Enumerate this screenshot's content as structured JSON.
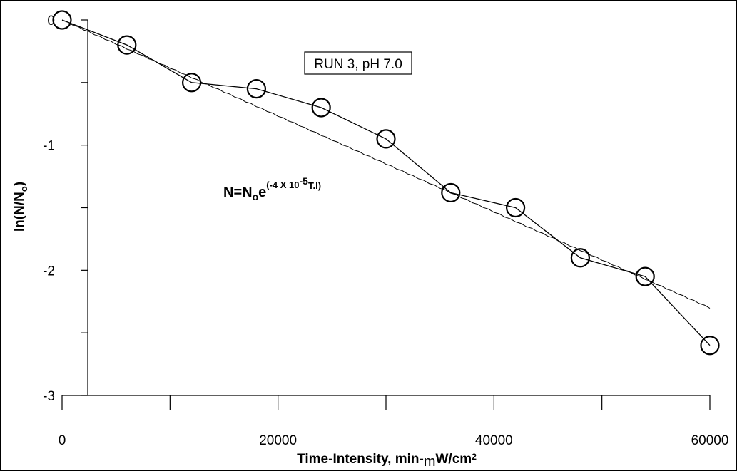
{
  "chart_data": {
    "type": "scatter",
    "title": "",
    "annotation": "RUN 3, pH 7.0",
    "equation": {
      "lhs": "N=N",
      "lhs_sub": "o",
      "base": "e",
      "exp_a": "(-4 X 10",
      "exp_pow": "-5",
      "exp_b": "T.I)"
    },
    "xlabel": "Time-Intensity, min-",
    "xlabel_mu": "m",
    "xlabel_unit": "W/cm",
    "xlabel_sup": "2",
    "ylabel": "ln(N/N",
    "ylabel_sub": "o",
    "ylabel_end": ")",
    "xlim": [
      0,
      60000
    ],
    "ylim": [
      -3,
      0
    ],
    "x_ticks": [
      0,
      20000,
      40000,
      60000
    ],
    "x_tick_labels": [
      "0",
      "20000",
      "40000",
      "60000"
    ],
    "y_ticks": [
      0,
      -1,
      -2,
      -3
    ],
    "y_tick_labels": [
      "0",
      "-1",
      "-2",
      "-3"
    ],
    "series": [
      {
        "marker": "open-circle",
        "x": [
          0,
          6000,
          12000,
          18000,
          24000,
          30000,
          36000,
          42000,
          48000,
          54000,
          60000
        ],
        "y": [
          0,
          -0.2,
          -0.5,
          -0.55,
          -0.7,
          -0.95,
          -1.38,
          -1.5,
          -1.9,
          -2.05,
          -2.6
        ]
      },
      {
        "style": "model-line",
        "model": "ln(N/No) = -4e-5 * T.I",
        "x": [
          0,
          60000
        ],
        "y": [
          0,
          -2.3
        ]
      }
    ]
  }
}
